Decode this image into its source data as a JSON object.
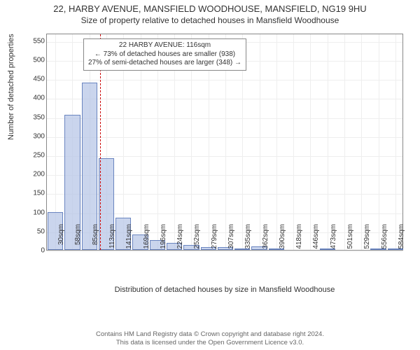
{
  "title": "22, HARBY AVENUE, MANSFIELD WOODHOUSE, MANSFIELD, NG19 9HU",
  "subtitle": "Size of property relative to detached houses in Mansfield Woodhouse",
  "chart": {
    "type": "bar",
    "ylabel": "Number of detached properties",
    "xlabel": "Distribution of detached houses by size in Mansfield Woodhouse",
    "ylim": [
      0,
      570
    ],
    "yticks": [
      0,
      50,
      100,
      150,
      200,
      250,
      300,
      350,
      400,
      450,
      500,
      550
    ],
    "x_categories": [
      "30sqm",
      "58sqm",
      "85sqm",
      "113sqm",
      "141sqm",
      "169sqm",
      "196sqm",
      "224sqm",
      "252sqm",
      "279sqm",
      "307sqm",
      "335sqm",
      "362sqm",
      "390sqm",
      "418sqm",
      "446sqm",
      "473sqm",
      "501sqm",
      "529sqm",
      "556sqm",
      "584sqm"
    ],
    "values": [
      100,
      355,
      440,
      240,
      85,
      40,
      25,
      18,
      12,
      8,
      7,
      4,
      10,
      3,
      0,
      0,
      3,
      0,
      0,
      3,
      3
    ],
    "bar_fill": "rgba(180,195,230,0.7)",
    "bar_stroke": "#6a85c0",
    "grid_color": "#eeeeee",
    "reference_line": {
      "x_index": 3,
      "fraction_within": 0.11,
      "color": "#c00"
    },
    "annotation": {
      "lines": [
        "22 HARBY AVENUE: 116sqm",
        "← 73% of detached houses are smaller (938)",
        "27% of semi-detached houses are larger (348) →"
      ]
    }
  },
  "footer": {
    "line1": "Contains HM Land Registry data © Crown copyright and database right 2024.",
    "line2": "This data is licensed under the Open Government Licence v3.0."
  }
}
